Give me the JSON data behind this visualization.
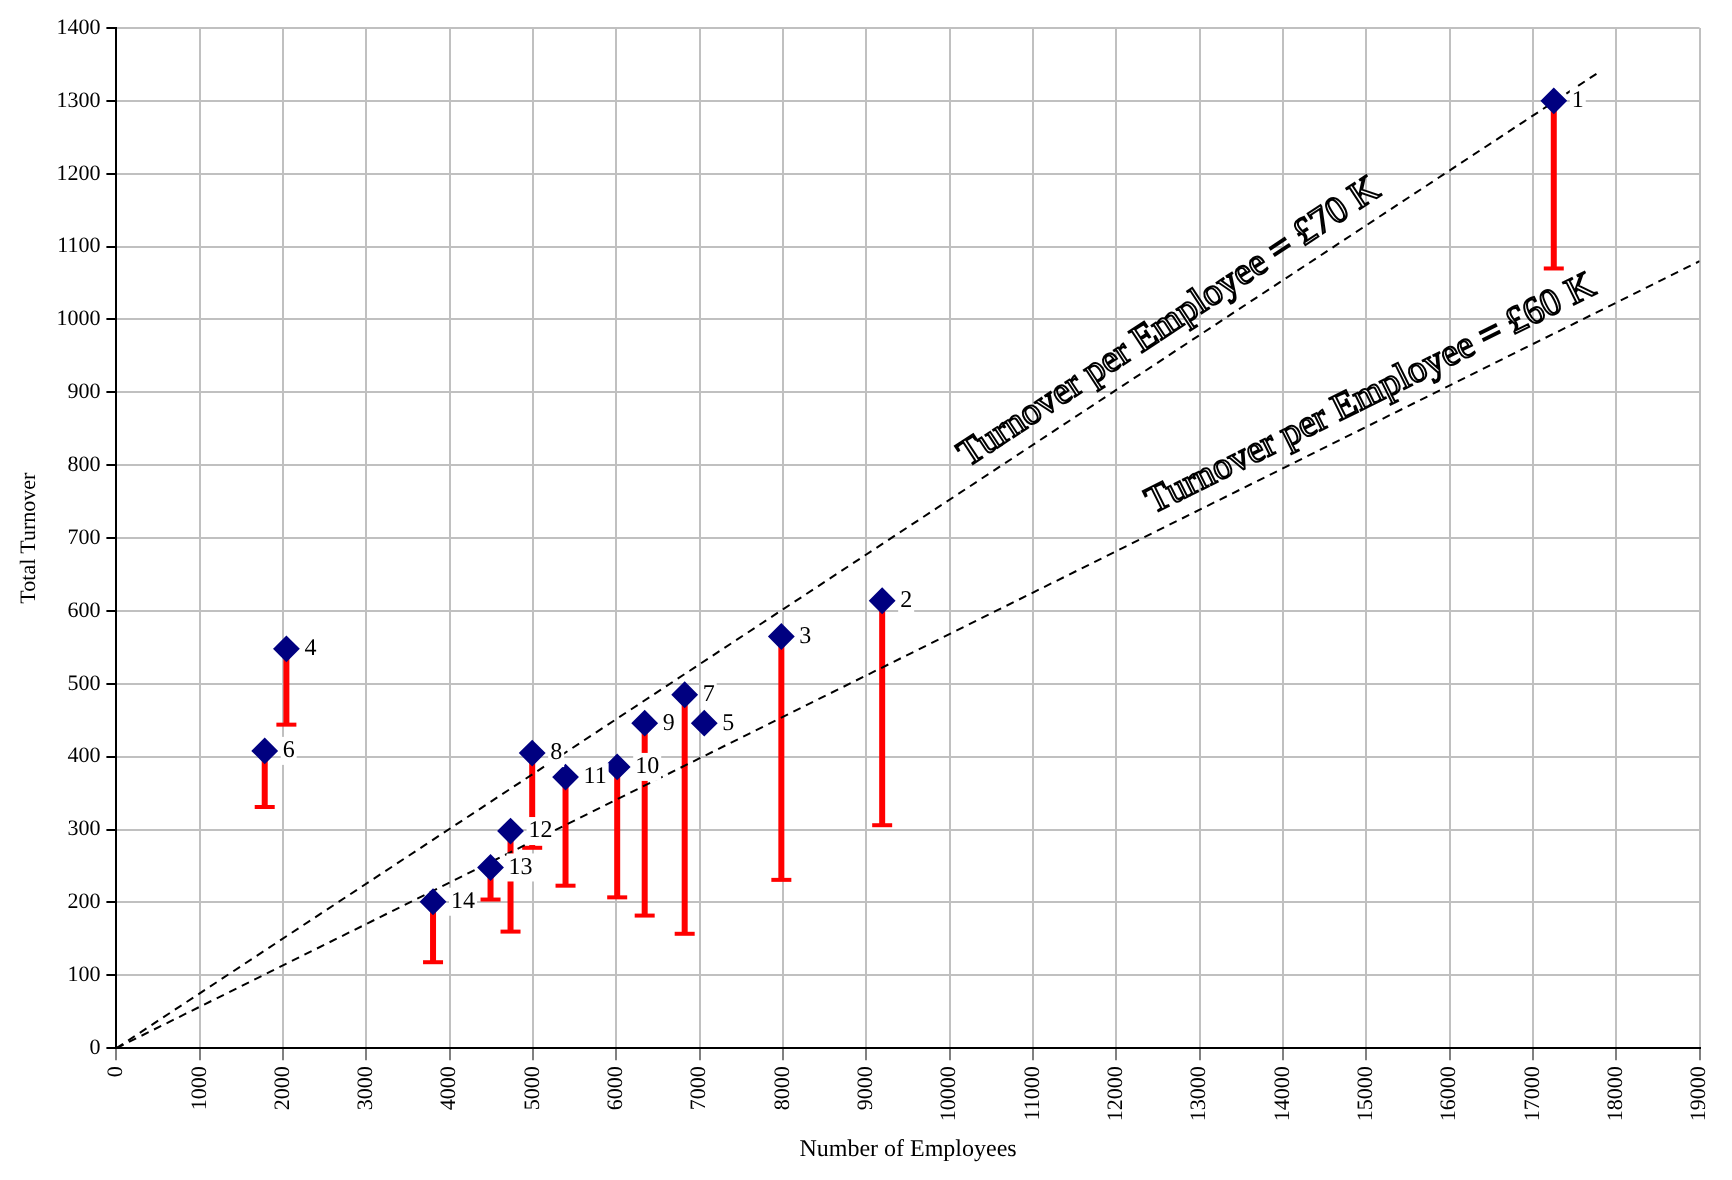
{
  "chart_data": {
    "type": "scatter",
    "xlabel": "Number of Employees",
    "ylabel": "Total Turnover",
    "xlim": [
      0,
      19000
    ],
    "xticks": [
      0,
      1000,
      2000,
      3000,
      4000,
      5000,
      6000,
      7000,
      8000,
      9000,
      10000,
      11000,
      12000,
      13000,
      14000,
      15000,
      16000,
      17000,
      18000,
      19000
    ],
    "ylim": [
      0,
      1400
    ],
    "yticks": [
      0,
      100,
      200,
      300,
      400,
      500,
      600,
      700,
      800,
      900,
      1000,
      1100,
      1200,
      1300,
      1400
    ],
    "grid": true,
    "legend": false,
    "marker": "diamond",
    "series": [
      {
        "color": "#000080",
        "x": [
          17250,
          9190,
          7980,
          2040,
          7055,
          1780,
          6820,
          4990,
          6340,
          6010,
          5390,
          4730,
          4490,
          3800
        ],
        "values": [
          1300,
          614,
          565,
          548,
          446,
          408,
          485,
          405,
          446,
          386,
          372,
          298,
          248,
          201
        ],
        "errors": [
          [
            1070,
            1300
          ],
          [
            306,
            614
          ],
          [
            231,
            565
          ],
          [
            444,
            548
          ],
          null,
          [
            331,
            408
          ],
          [
            157,
            485
          ],
          [
            275,
            405
          ],
          [
            182,
            446
          ],
          [
            207,
            386
          ],
          [
            223,
            372
          ],
          [
            160,
            298
          ],
          [
            204,
            248
          ],
          [
            118,
            201
          ]
        ]
      },
      {
        "type": "line",
        "color": "#000000",
        "line_style": "dashed",
        "marker": "none",
        "x": [
          0,
          17800
        ],
        "values": [
          0,
          1340
        ]
      },
      {
        "type": "line",
        "color": "#000000",
        "line_style": "dashed",
        "marker": "none",
        "x": [
          0,
          19000
        ],
        "values": [
          0,
          1080
        ]
      }
    ],
    "annotations": [
      {
        "text": "1",
        "x": 17250,
        "y": 1300
      },
      {
        "text": "2",
        "x": 9190,
        "y": 614
      },
      {
        "text": "3",
        "x": 7980,
        "y": 565
      },
      {
        "text": "4",
        "x": 2040,
        "y": 548
      },
      {
        "text": "5",
        "x": 7055,
        "y": 446
      },
      {
        "text": "6",
        "x": 1780,
        "y": 408
      },
      {
        "text": "7",
        "x": 6820,
        "y": 485
      },
      {
        "text": "8",
        "x": 4990,
        "y": 405
      },
      {
        "text": "9",
        "x": 6340,
        "y": 446
      },
      {
        "text": "10",
        "x": 6010,
        "y": 386
      },
      {
        "text": "11",
        "x": 5390,
        "y": 372
      },
      {
        "text": "12",
        "x": 4730,
        "y": 298
      },
      {
        "text": "13",
        "x": 4490,
        "y": 248
      },
      {
        "text": "14",
        "x": 3800,
        "y": 201
      },
      "Turnover per Employee = £70 K",
      "Turnover per Employee = £60 K"
    ]
  }
}
